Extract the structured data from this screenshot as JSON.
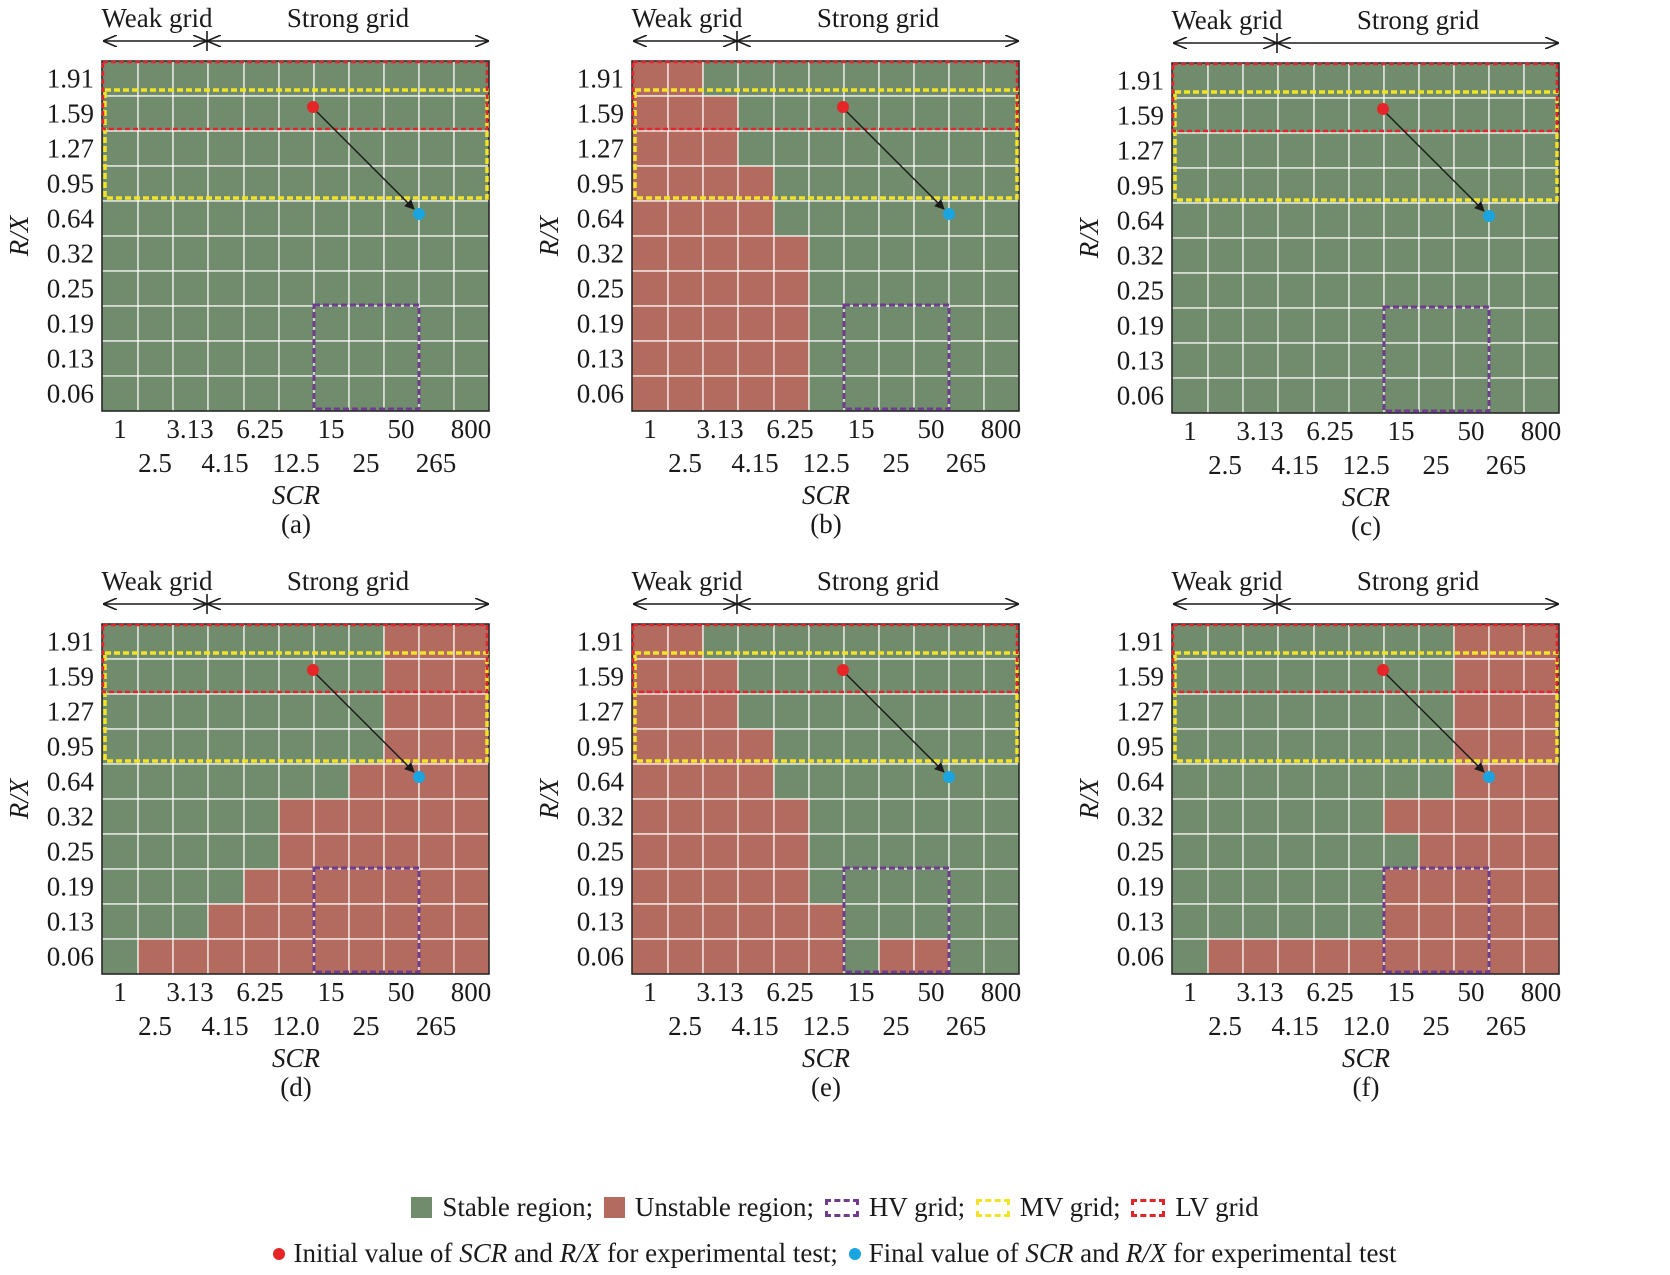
{
  "colors": {
    "stable": "#718c6c",
    "unstable": "#b26b5e",
    "hv": "#6e3d8e",
    "mv": "#f2e228",
    "lv": "#e0252c",
    "initial_point": "#e52527",
    "final_point": "#1aa4e0"
  },
  "chart_data": [
    {
      "type": "heatmap",
      "panel": "(a)",
      "header": {
        "weak": "Weak grid",
        "strong": "Strong grid"
      },
      "xlabel": "SCR",
      "ylabel": "R/X",
      "x_ticks_top": [
        "1",
        "3.13",
        "6.25",
        "15",
        "50",
        "800"
      ],
      "x_ticks_bottom": [
        "2.5",
        "4.15",
        "12.5",
        "25",
        "265"
      ],
      "y_ticks": [
        "1.91",
        "1.59",
        "1.27",
        "0.95",
        "0.64",
        "0.32",
        "0.25",
        "0.19",
        "0.13",
        "0.06"
      ],
      "unstable_cols_per_row": [
        0,
        0,
        0,
        0,
        0,
        0,
        0,
        0,
        0,
        0
      ],
      "unstable_from_col_per_row": [
        11,
        11,
        11,
        11,
        11,
        11,
        11,
        11,
        11,
        11
      ],
      "unstable_extra": []
    },
    {
      "type": "heatmap",
      "panel": "(b)",
      "header": {
        "weak": "Weak grid",
        "strong": "Strong grid"
      },
      "xlabel": "SCR",
      "ylabel": "R/X",
      "x_ticks_top": [
        "1",
        "3.13",
        "6.25",
        "15",
        "50",
        "800"
      ],
      "x_ticks_bottom": [
        "2.5",
        "4.15",
        "12.5",
        "25",
        "265"
      ],
      "y_ticks": [
        "1.91",
        "1.59",
        "1.27",
        "0.95",
        "0.64",
        "0.32",
        "0.25",
        "0.19",
        "0.13",
        "0.06"
      ],
      "unstable_cols_per_row": [
        2,
        3,
        3,
        4,
        4,
        5,
        5,
        5,
        5,
        5
      ],
      "unstable_from_col_per_row": [
        11,
        11,
        11,
        11,
        11,
        11,
        11,
        11,
        11,
        11
      ],
      "unstable_extra": []
    },
    {
      "type": "heatmap",
      "panel": "(c)",
      "header": {
        "weak": "Weak grid",
        "strong": "Strong grid"
      },
      "xlabel": "SCR",
      "ylabel": "R/X",
      "x_ticks_top": [
        "1",
        "3.13",
        "6.25",
        "15",
        "50",
        "800"
      ],
      "x_ticks_bottom": [
        "2.5",
        "4.15",
        "12.5",
        "25",
        "265"
      ],
      "y_ticks": [
        "1.91",
        "1.59",
        "1.27",
        "0.95",
        "0.64",
        "0.32",
        "0.25",
        "0.19",
        "0.13",
        "0.06"
      ],
      "unstable_cols_per_row": [
        0,
        0,
        0,
        0,
        0,
        0,
        0,
        0,
        0,
        0
      ],
      "unstable_from_col_per_row": [
        11,
        11,
        11,
        11,
        11,
        11,
        11,
        11,
        11,
        11
      ],
      "unstable_extra": []
    },
    {
      "type": "heatmap",
      "panel": "(d)",
      "header": {
        "weak": "Weak grid",
        "strong": "Strong grid"
      },
      "xlabel": "SCR",
      "ylabel": "R/X",
      "x_ticks_top": [
        "1",
        "3.13",
        "6.25",
        "15",
        "50",
        "800"
      ],
      "x_ticks_bottom": [
        "2.5",
        "4.15",
        "12.0",
        "25",
        "265"
      ],
      "y_ticks": [
        "1.91",
        "1.59",
        "1.27",
        "0.95",
        "0.64",
        "0.32",
        "0.25",
        "0.19",
        "0.13",
        "0.06"
      ],
      "unstable_cols_per_row": [
        0,
        0,
        0,
        0,
        0,
        0,
        0,
        0,
        0,
        0
      ],
      "unstable_from_col_per_row": [
        8,
        8,
        8,
        8,
        7,
        5,
        5,
        4,
        3,
        1
      ],
      "unstable_extra": []
    },
    {
      "type": "heatmap",
      "panel": "(e)",
      "header": {
        "weak": "Weak grid",
        "strong": "Strong grid"
      },
      "xlabel": "SCR",
      "ylabel": "R/X",
      "x_ticks_top": [
        "1",
        "3.13",
        "6.25",
        "15",
        "50",
        "800"
      ],
      "x_ticks_bottom": [
        "2.5",
        "4.15",
        "12.5",
        "25",
        "265"
      ],
      "y_ticks": [
        "1.91",
        "1.59",
        "1.27",
        "0.95",
        "0.64",
        "0.32",
        "0.25",
        "0.19",
        "0.13",
        "0.06"
      ],
      "unstable_cols_per_row": [
        2,
        3,
        3,
        4,
        4,
        5,
        5,
        5,
        6,
        6
      ],
      "unstable_from_col_per_row": [
        11,
        11,
        11,
        11,
        11,
        11,
        11,
        11,
        11,
        11
      ],
      "unstable_extra": [
        [
          9,
          7
        ],
        [
          9,
          8
        ]
      ]
    },
    {
      "type": "heatmap",
      "panel": "(f)",
      "header": {
        "weak": "Weak grid",
        "strong": "Strong grid"
      },
      "xlabel": "SCR",
      "ylabel": "R/X",
      "x_ticks_top": [
        "1",
        "3.13",
        "6.25",
        "15",
        "50",
        "800"
      ],
      "x_ticks_bottom": [
        "2.5",
        "4.15",
        "12.0",
        "25",
        "265"
      ],
      "y_ticks": [
        "1.91",
        "1.59",
        "1.27",
        "0.95",
        "0.64",
        "0.32",
        "0.25",
        "0.19",
        "0.13",
        "0.06"
      ],
      "unstable_cols_per_row": [
        0,
        0,
        0,
        0,
        0,
        0,
        0,
        0,
        0,
        0
      ],
      "unstable_from_col_per_row": [
        8,
        8,
        8,
        8,
        8,
        6,
        7,
        6,
        6,
        1
      ],
      "unstable_extra": []
    }
  ],
  "legend": {
    "stable": "Stable region;",
    "unstable": "Unstable region;",
    "hv": "HV grid;",
    "mv": "MV grid;",
    "lv": "LV grid",
    "line2_a": "Initial value of ",
    "line2_b": "SCR",
    "line2_c": " and ",
    "line2_d": "R/X",
    "line2_e": " for experimental test;",
    "line2_f": "Final value of ",
    "line2_g": "SCR",
    "line2_h": " and ",
    "line2_i": "R/X",
    "line2_j": " for experimental test"
  }
}
